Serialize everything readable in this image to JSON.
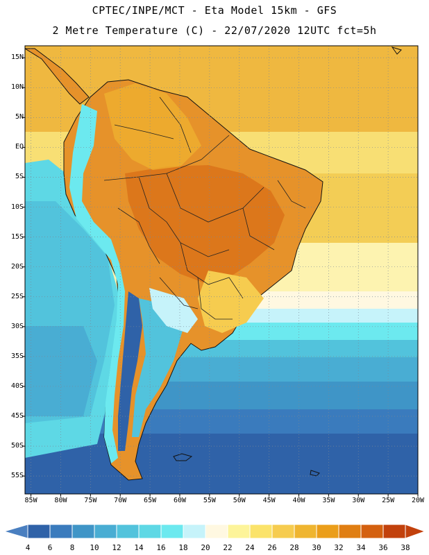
{
  "header": {
    "line1": "CPTEC/INPE/MCT -  Eta Model 15km - GFS",
    "line2": "2 Metre Temperature (C) - 22/07/2020 12UTC fct=5h"
  },
  "axes": {
    "lat_labels": [
      "15N",
      "10N",
      "5N",
      "EQ",
      "5S",
      "10S",
      "15S",
      "20S",
      "25S",
      "30S",
      "35S",
      "40S",
      "45S",
      "50S",
      "55S"
    ],
    "lat_values": [
      15,
      10,
      5,
      0,
      -5,
      -10,
      -15,
      -20,
      -25,
      -30,
      -35,
      -40,
      -45,
      -50,
      -55
    ],
    "lon_labels": [
      "85W",
      "80W",
      "75W",
      "70W",
      "65W",
      "60W",
      "55W",
      "50W",
      "45W",
      "40W",
      "35W",
      "30W",
      "25W",
      "20W"
    ],
    "lon_values": [
      -85,
      -80,
      -75,
      -70,
      -65,
      -60,
      -55,
      -50,
      -45,
      -40,
      -35,
      -30,
      -25,
      -20
    ],
    "lat_range": [
      -58,
      17
    ],
    "lon_range": [
      -86,
      -20
    ]
  },
  "colorbar": {
    "labels": [
      "4",
      "6",
      "8",
      "10",
      "12",
      "14",
      "16",
      "18",
      "20",
      "22",
      "24",
      "26",
      "28",
      "30",
      "32",
      "34",
      "36",
      "38"
    ],
    "colors": [
      "#2f62a8",
      "#3a7bbd",
      "#3f95c7",
      "#49add3",
      "#52c3dc",
      "#5ed8e5",
      "#6ce9ef",
      "#c6f3fa",
      "#fff8e1",
      "#fdf49a",
      "#fbe36a",
      "#f6cc4f",
      "#efb530",
      "#eb9e1a",
      "#e07e12",
      "#d4600f",
      "#c2410c"
    ],
    "lower_arrow": "#4a7fc0",
    "upper_arrow": "#c2410c"
  },
  "colors": {
    "ocean_warm": "#f3cd55",
    "land_hot": "#e6922a",
    "coast": "#111111"
  }
}
